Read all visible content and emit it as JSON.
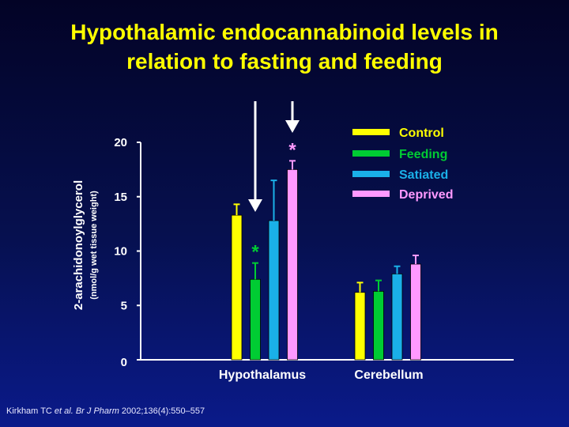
{
  "title_line1": "Hypothalamic endocannabinoid levels in",
  "title_line2": "relation to fasting and feeding",
  "citation": {
    "authors": "Kirkham TC ",
    "etal": "et al.",
    "sep": " ",
    "journal": "Br J Pharm",
    "ref": " 2002;136(4):550–557"
  },
  "colors": {
    "control": "#ffff00",
    "feeding": "#00cc33",
    "satiated": "#1ab0e8",
    "deprived": "#ff99ff",
    "axis": "#ffffff",
    "arrow": "#ffffff"
  },
  "chart_data": {
    "type": "bar",
    "categories": [
      "Hypothalamus",
      "Cerebellum"
    ],
    "ylabel": "2-arachidonoylglycerol",
    "ylabel_units": "(nmol/g wet tissue weight)",
    "ylim": [
      0,
      20
    ],
    "yticks": [
      0,
      5,
      10,
      15,
      20
    ],
    "legend_position": "top-right",
    "series": [
      {
        "name": "Control",
        "color_key": "control",
        "values": [
          13.3,
          6.2
        ],
        "errors": [
          1.0,
          0.9
        ]
      },
      {
        "name": "Feeding",
        "color_key": "feeding",
        "values": [
          7.4,
          6.3
        ],
        "errors": [
          1.5,
          1.0
        ]
      },
      {
        "name": "Satiated",
        "color_key": "satiated",
        "values": [
          12.8,
          7.9
        ],
        "errors": [
          3.7,
          0.7
        ]
      },
      {
        "name": "Deprived",
        "color_key": "deprived",
        "values": [
          17.5,
          8.8
        ],
        "errors": [
          0.8,
          0.8
        ]
      }
    ],
    "significance": [
      {
        "label": "*",
        "series": 1,
        "category": 0
      },
      {
        "label": "*",
        "series": 3,
        "category": 0
      }
    ],
    "arrows": [
      {
        "series": 1,
        "category": 0,
        "from": 24.0
      },
      {
        "series": 3,
        "category": 0,
        "from": 24.0
      }
    ]
  }
}
